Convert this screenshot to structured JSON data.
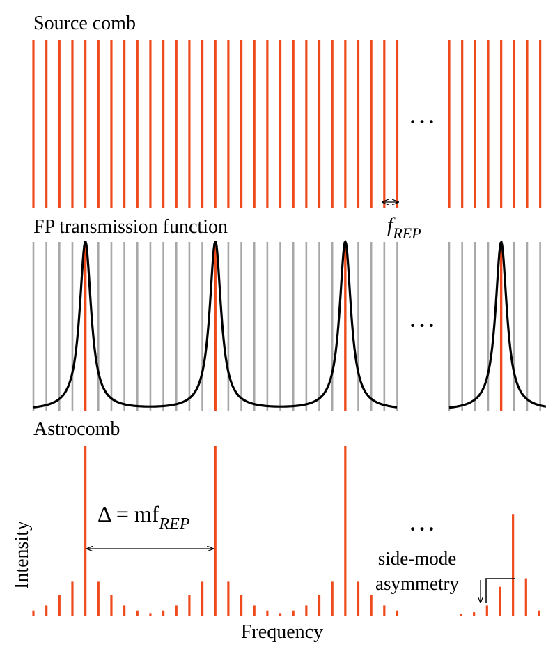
{
  "labels": {
    "source_comb": "Source comb",
    "fp_transmission": "FP transmission function",
    "astrocomb": "Astrocomb",
    "f_symbol": "f",
    "rep_subscript": "REP",
    "delta_expression": "Δ = mf",
    "side_mode_line1": "side-mode",
    "side_mode_line2": "asymmetry",
    "ellipsis": "···",
    "y_axis": "Intensity",
    "x_axis": "Frequency"
  },
  "colors": {
    "comb_line": "#ef4a1c",
    "suppressed_line": "#a8a8a8",
    "transmission_curve": "#000000",
    "text": "#000000"
  },
  "comb": {
    "lines_left_group": 29,
    "lines_right_group": 8,
    "transmitted_every_nth": 10,
    "peak_indices_left": [
      4,
      14,
      24
    ],
    "peak_index_right": 4,
    "astrocomb_side_mode_levels": [
      0.2,
      0.12,
      0.06,
      0.03,
      0.015,
      0.01,
      0.01,
      0.01,
      0.01
    ]
  }
}
